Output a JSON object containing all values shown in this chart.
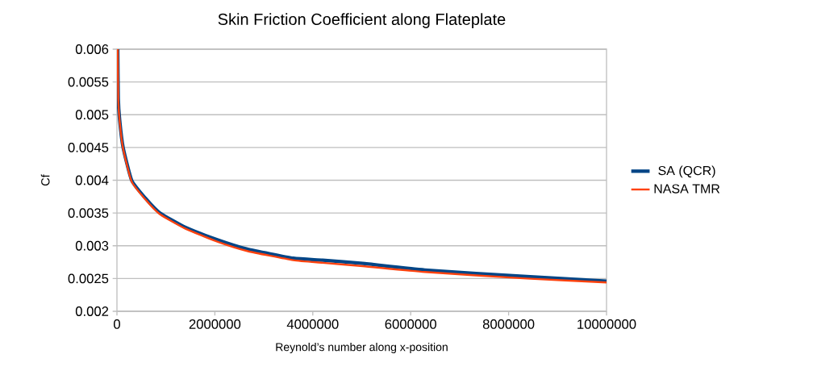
{
  "chart_data": {
    "type": "line",
    "title": "Skin Friction Coefficient along Flateplate",
    "xlabel": "Reynold’s number along x-position",
    "ylabel": "Cf",
    "x": [
      16000,
      27000,
      55000,
      126000,
      300000,
      577000,
      880000,
      1400000,
      2060000,
      2660000,
      3600000,
      4200000,
      5020000,
      6290000,
      8370000,
      10000000
    ],
    "series": [
      {
        "name": "SA (QCR)",
        "color": "#004586",
        "values": [
          0.006,
          0.00525,
          0.00492,
          0.0045,
          0.004,
          0.00373,
          0.0035,
          0.00328,
          0.00309,
          0.00295,
          0.00281,
          0.00278,
          0.00273,
          0.00263,
          0.00253,
          0.00246
        ]
      },
      {
        "name": "NASA TMR",
        "color": "#ff420e",
        "values": [
          0.006,
          0.00524,
          0.0049,
          0.00448,
          0.00398,
          0.00371,
          0.00348,
          0.00326,
          0.00306,
          0.00292,
          0.00278,
          0.00274,
          0.00269,
          0.0026,
          0.0025,
          0.00244
        ]
      }
    ],
    "xlim": [
      0,
      10000000
    ],
    "ylim": [
      0.002,
      0.006
    ],
    "xticks": [
      0,
      2000000,
      4000000,
      6000000,
      8000000,
      10000000
    ],
    "yticks": [
      0.002,
      0.0025,
      0.003,
      0.0035,
      0.004,
      0.0045,
      0.005,
      0.0055,
      0.006
    ],
    "grid": "y",
    "legend": "right",
    "marker": "none",
    "line_style": "solid"
  }
}
